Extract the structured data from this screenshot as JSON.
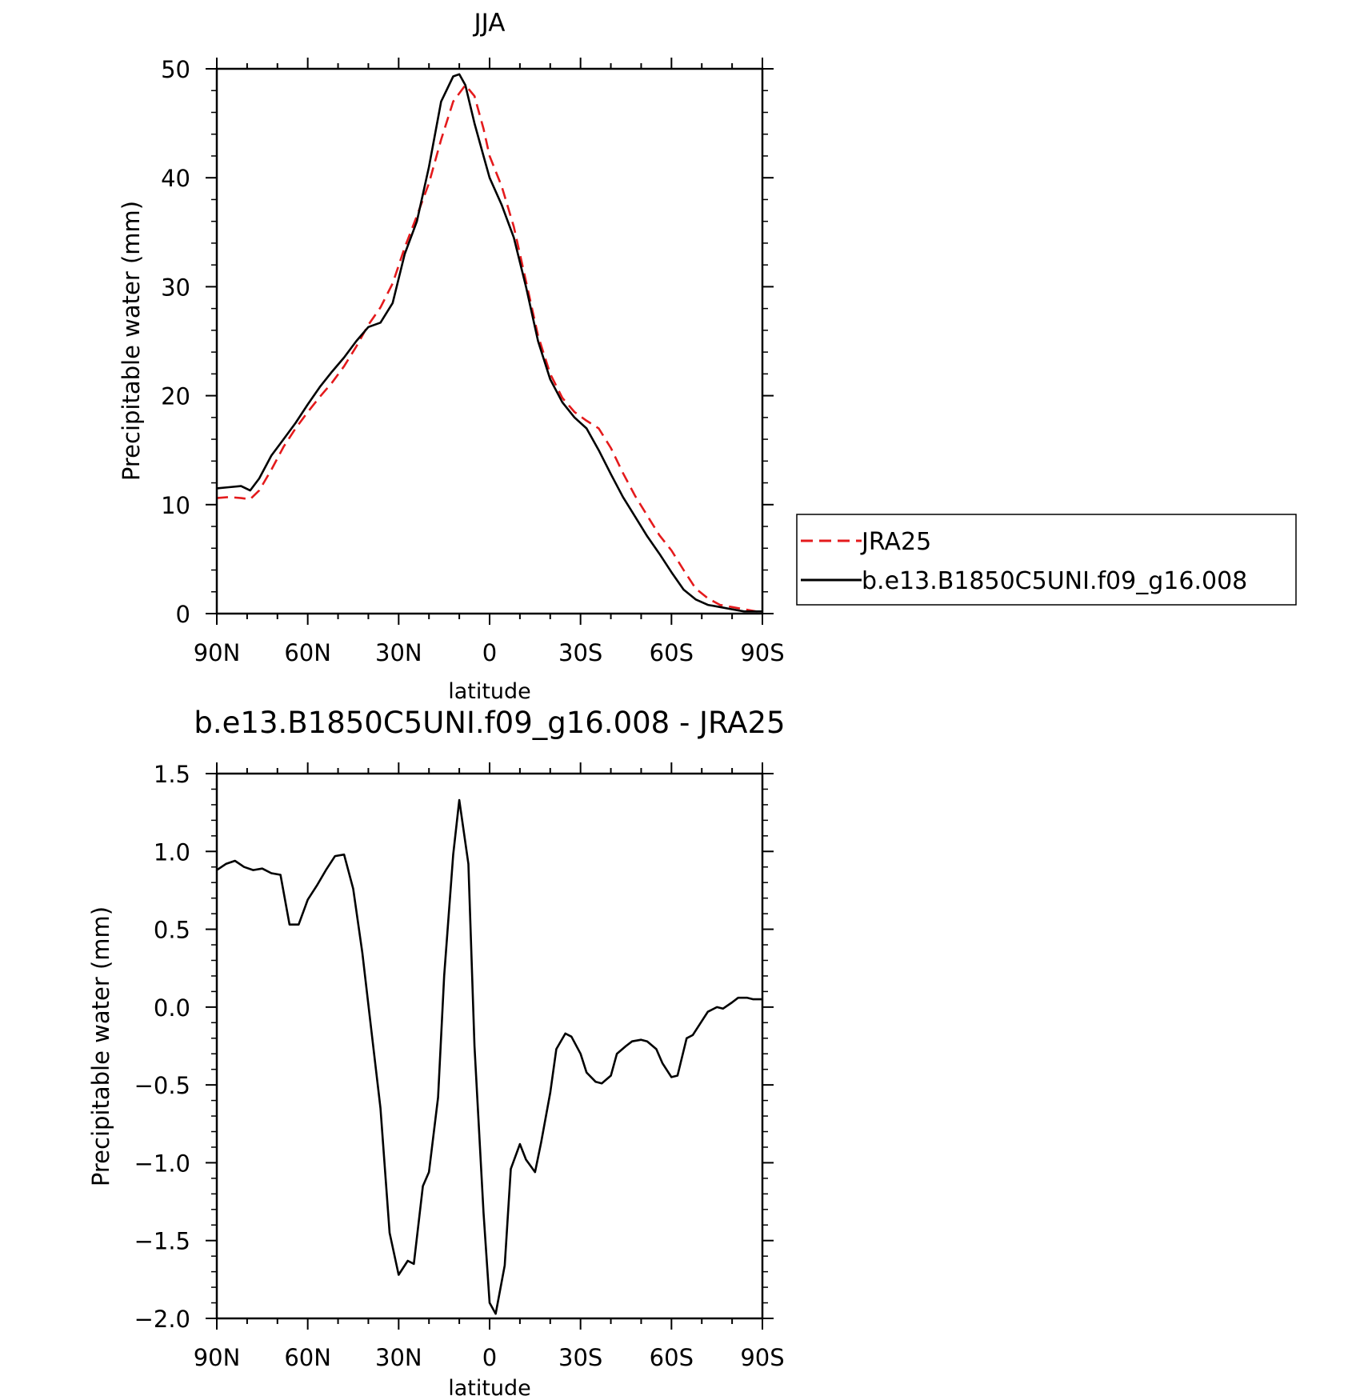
{
  "chart_data": [
    {
      "type": "line",
      "title": "JJA",
      "xlabel": "latitude",
      "ylabel": "Precipitable water (mm)",
      "xlim": [
        90,
        -90
      ],
      "ylim": [
        0,
        50
      ],
      "xticks": [
        90,
        60,
        30,
        0,
        -30,
        -60,
        -90
      ],
      "xtick_labels": [
        "90N",
        "60N",
        "30N",
        "0",
        "30S",
        "60S",
        "90S"
      ],
      "yticks": [
        0,
        10,
        20,
        30,
        40,
        50
      ],
      "ytick_labels": [
        "0",
        "10",
        "20",
        "30",
        "40",
        "50"
      ],
      "grid": false,
      "legend": {
        "placement": "right",
        "entries": [
          "JRA25",
          "b.e13.B1850C5UNI.f09_g16.008"
        ]
      },
      "series": [
        {
          "name": "JRA25",
          "color": "#e41a1c",
          "style": "dashed",
          "x": [
            90,
            86,
            82,
            79,
            76,
            72,
            68,
            64,
            60,
            56,
            52,
            48,
            44,
            40,
            36,
            32,
            28,
            24,
            20,
            16,
            12,
            8,
            5,
            2,
            0,
            -4,
            -8,
            -12,
            -16,
            -20,
            -24,
            -28,
            -32,
            -36,
            -40,
            -44,
            -48,
            -52,
            -56,
            -60,
            -64,
            -68,
            -72,
            -76,
            -80,
            -84,
            -88,
            -90
          ],
          "y": [
            10.6,
            10.7,
            10.6,
            10.5,
            11.3,
            13.2,
            15.3,
            17.0,
            18.5,
            19.9,
            21.2,
            22.7,
            24.5,
            26.5,
            28.1,
            30.3,
            33.6,
            36.5,
            39.5,
            43.5,
            47.0,
            48.5,
            47.5,
            44.5,
            42.0,
            39.2,
            35.5,
            30.5,
            25.5,
            22.0,
            19.8,
            18.5,
            17.7,
            17.0,
            15.2,
            12.9,
            10.8,
            9.0,
            7.2,
            5.8,
            4.0,
            2.3,
            1.4,
            0.8,
            0.6,
            0.4,
            0.2,
            0.2
          ]
        },
        {
          "name": "b.e13.B1850C5UNI.f09_g16.008",
          "color": "#000000",
          "style": "solid",
          "x": [
            90,
            86,
            82,
            79,
            76,
            72,
            68,
            64,
            60,
            56,
            52,
            48,
            44,
            40,
            36,
            32,
            28,
            24,
            20,
            16,
            12,
            10,
            8,
            5,
            2,
            0,
            -4,
            -8,
            -12,
            -16,
            -20,
            -24,
            -28,
            -32,
            -36,
            -40,
            -44,
            -48,
            -52,
            -56,
            -60,
            -64,
            -68,
            -72,
            -76,
            -80,
            -84,
            -88,
            -90
          ],
          "y": [
            11.5,
            11.6,
            11.7,
            11.3,
            12.4,
            14.5,
            16.0,
            17.5,
            19.2,
            20.8,
            22.2,
            23.5,
            25.0,
            26.3,
            26.7,
            28.5,
            33.0,
            36.0,
            41.0,
            47.0,
            49.3,
            49.5,
            48.5,
            45.0,
            42.0,
            40.0,
            37.5,
            34.5,
            30.0,
            25.0,
            21.5,
            19.4,
            18.0,
            17.0,
            15.0,
            12.8,
            10.7,
            8.9,
            7.1,
            5.5,
            3.8,
            2.2,
            1.3,
            0.8,
            0.6,
            0.4,
            0.2,
            0.2,
            0.2
          ]
        }
      ]
    },
    {
      "type": "line",
      "title": "b.e13.B1850C5UNI.f09_g16.008 - JRA25",
      "xlabel": "latitude",
      "ylabel": "Precipitable water (mm)",
      "xlim": [
        90,
        -90
      ],
      "ylim": [
        -2.0,
        1.5
      ],
      "xticks": [
        90,
        60,
        30,
        0,
        -30,
        -60,
        -90
      ],
      "xtick_labels": [
        "90N",
        "60N",
        "30N",
        "0",
        "30S",
        "60S",
        "90S"
      ],
      "yticks": [
        1.5,
        1.0,
        0.5,
        0.0,
        -0.5,
        -1.0,
        -1.5,
        -2.0
      ],
      "ytick_labels": [
        "1.5",
        "1.0",
        "0.5",
        "0.0",
        "−0.5",
        "−1.0",
        "−1.5",
        "−2.0"
      ],
      "grid": false,
      "series": [
        {
          "color": "#000000",
          "style": "solid",
          "x": [
            90,
            87,
            84,
            81,
            78,
            75,
            72,
            69,
            66,
            63,
            60,
            57,
            54,
            51,
            48,
            45,
            42,
            39,
            36,
            33,
            30,
            27,
            25,
            22,
            20,
            17,
            15,
            12,
            10,
            7,
            5,
            2,
            0,
            -2,
            -5,
            -7,
            -10,
            -12,
            -15,
            -17,
            -20,
            -22,
            -25,
            -27,
            -30,
            -32,
            -35,
            -37,
            -40,
            -42,
            -45,
            -47,
            -50,
            -52,
            -55,
            -57,
            -60,
            -62,
            -65,
            -67,
            -70,
            -72,
            -75,
            -77,
            -80,
            -82,
            -85,
            -87,
            -90
          ],
          "y": [
            0.88,
            0.92,
            0.94,
            0.9,
            0.88,
            0.89,
            0.86,
            0.85,
            0.53,
            0.53,
            0.69,
            0.78,
            0.88,
            0.97,
            0.98,
            0.76,
            0.35,
            -0.15,
            -0.65,
            -1.45,
            -1.72,
            -1.63,
            -1.65,
            -1.15,
            -1.06,
            -0.58,
            0.2,
            0.98,
            1.33,
            0.92,
            -0.25,
            -1.32,
            -1.9,
            -1.97,
            -1.66,
            -1.04,
            -0.88,
            -0.98,
            -1.06,
            -0.87,
            -0.55,
            -0.27,
            -0.17,
            -0.19,
            -0.3,
            -0.42,
            -0.48,
            -0.49,
            -0.44,
            -0.3,
            -0.25,
            -0.22,
            -0.21,
            -0.22,
            -0.27,
            -0.36,
            -0.45,
            -0.44,
            -0.2,
            -0.18,
            -0.09,
            -0.03,
            0.0,
            -0.01,
            0.03,
            0.06,
            0.06,
            0.05,
            0.05
          ]
        }
      ]
    }
  ]
}
